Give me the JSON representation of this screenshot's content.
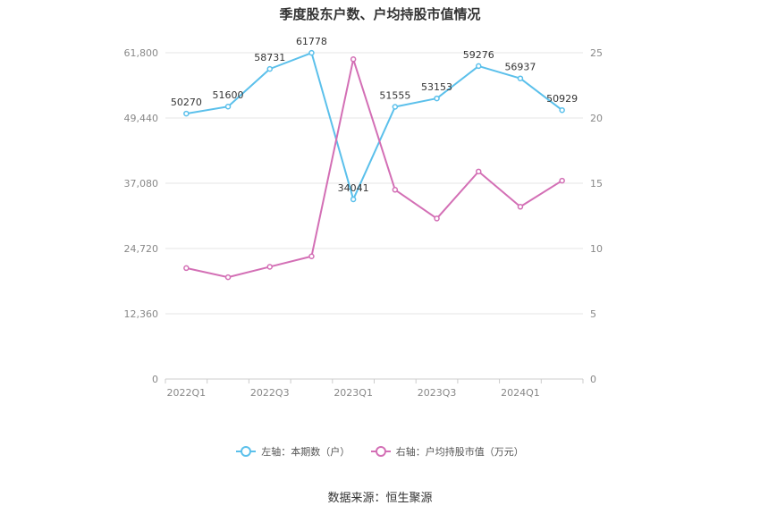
{
  "title": "季度股东户数、户均持股市值情况",
  "source": "数据来源：恒生聚源",
  "colors": {
    "left_series": "#5bc0eb",
    "right_series": "#d36fb5",
    "grid": "#e6e6e6",
    "axis": "#cccccc"
  },
  "chart_data": {
    "type": "line",
    "title": "季度股东户数、户均持股市值情况",
    "categories": [
      "2022Q1",
      "2022Q2",
      "2022Q3",
      "2022Q4",
      "2023Q1",
      "2023Q2",
      "2023Q3",
      "2023Q4",
      "2024Q1",
      "2024Q2"
    ],
    "x_tick_labels": [
      "2022Q1",
      "2022Q3",
      "2023Q1",
      "2023Q3",
      "2024Q1"
    ],
    "y_left": {
      "ylim": [
        0,
        61800
      ],
      "ticks": [
        "0",
        "12,360",
        "24,720",
        "37,080",
        "49,440",
        "61,800"
      ]
    },
    "y_right": {
      "ylim": [
        0,
        25
      ],
      "ticks": [
        "0",
        "5",
        "10",
        "15",
        "20",
        "25"
      ]
    },
    "grid": true,
    "legend_position": "bottom",
    "series": [
      {
        "name": "左轴：本期数（户）",
        "axis": "left",
        "color": "#5bc0eb",
        "values": [
          50270,
          51600,
          58731,
          61778,
          34041,
          51555,
          53153,
          59276,
          56937,
          50929
        ],
        "labels": [
          "50270",
          "51600",
          "58731",
          "61778",
          "34041",
          "51555",
          "53153",
          "59276",
          "56937",
          "50929"
        ]
      },
      {
        "name": "右轴：户均持股市值（万元）",
        "axis": "right",
        "color": "#d36fb5",
        "values": [
          8.5,
          7.8,
          8.6,
          9.4,
          24.5,
          14.5,
          12.3,
          15.9,
          13.2,
          15.2
        ]
      }
    ]
  }
}
